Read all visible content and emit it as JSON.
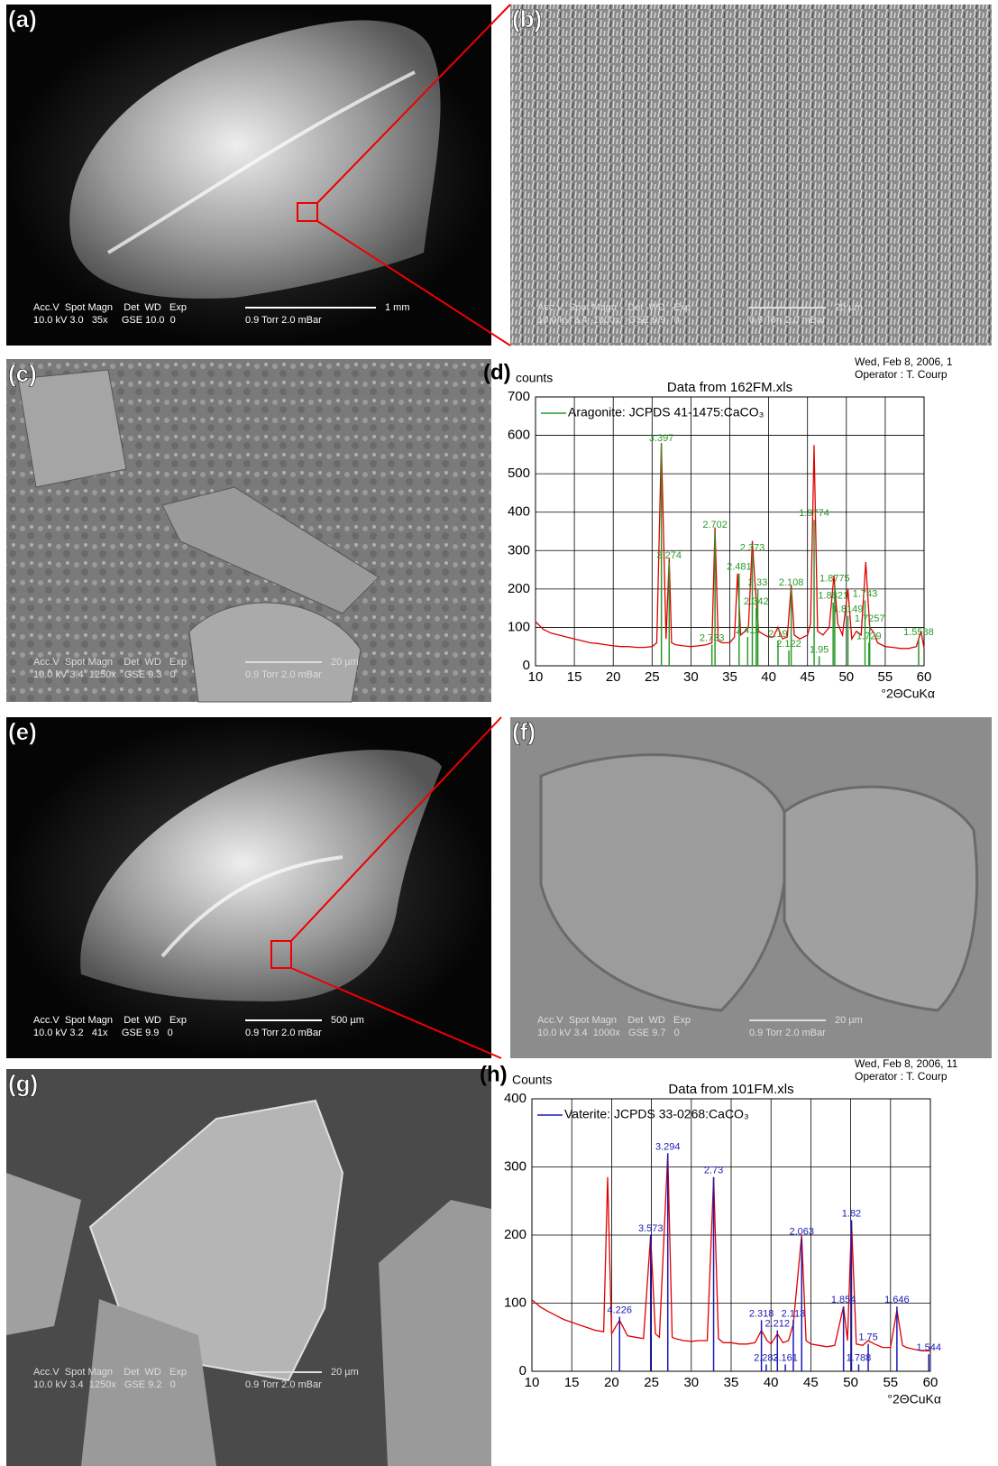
{
  "panels": [
    {
      "label": "(a)",
      "info": [
        "Acc.V  Spot Magn    Det  WD   Exp",
        "10.0 kV 3.0   35x     GSE 10.0  0"
      ],
      "scale": "1 mm",
      "pressure": "0.9 Torr 2.0 mBar"
    },
    {
      "label": "(b)",
      "info": [
        "Acc.V  Spot Magn    Det  WD   Exp",
        "10.0 kV 3.4  1000x   GSE 9.9   0"
      ],
      "scale": "20 µm",
      "pressure": "0.9 Torr 2.0 mBar"
    },
    {
      "label": "(c)",
      "info": [
        "Acc.V  Spot Magn    Det  WD   Exp",
        "10.0 kV 3.4  1250x   GSE 9.3   0"
      ],
      "scale": "20 µm",
      "pressure": "0.9 Torr 2.0 mBar"
    },
    {
      "label": "(e)",
      "info": [
        "Acc.V  Spot Magn    Det  WD   Exp",
        "10.0 kV 3.2   41x     GSE 9.9   0"
      ],
      "scale": "500 µm",
      "pressure": "0.9 Torr 2.0 mBar"
    },
    {
      "label": "(f)",
      "info": [
        "Acc.V  Spot Magn    Det  WD   Exp",
        "10.0 kV 3.4  1000x   GSE 9.7   0"
      ],
      "scale": "20 µm",
      "pressure": "0.9 Torr 2.0 mBar"
    },
    {
      "label": "(g)",
      "info": [
        "Acc.V  Spot Magn    Det  WD   Exp",
        "10.0 kV 3.4  1250x   GSE 9.2   0"
      ],
      "scale": "20 µm",
      "pressure": "0.9 Torr 2.0 mBar"
    }
  ],
  "chart_data": [
    {
      "type": "line",
      "panel": "(d)",
      "title": "Data from 162FM.xls",
      "y_label": "counts",
      "x_label": "°2ΘCuKα",
      "note": "Wed, Feb 8, 2006, 1",
      "operator": "Operator : T. Courp",
      "color": "#e00000",
      "grid": true,
      "legend": "upper left",
      "x": [
        10,
        11,
        12,
        13,
        14,
        15,
        16,
        17,
        18,
        19,
        20,
        21,
        22,
        23,
        24,
        25,
        25.6,
        26.2,
        26.8,
        27.2,
        27.5,
        28,
        29,
        30,
        31,
        32,
        32.7,
        33.1,
        33.5,
        34,
        35,
        35.6,
        36,
        36.4,
        37,
        37.4,
        37.9,
        38.3,
        38.7,
        39.5,
        40,
        40.6,
        41.2,
        41.8,
        42.4,
        42.9,
        43.3,
        44,
        45,
        45.4,
        45.85,
        46.3,
        47,
        47.8,
        48.4,
        48.9,
        49.5,
        50.2,
        50.7,
        51.3,
        51.9,
        52.5,
        53,
        53.6,
        54,
        55,
        56,
        57,
        58,
        59,
        59.6,
        60
      ],
      "values": [
        115,
        95,
        85,
        80,
        75,
        70,
        65,
        60,
        58,
        55,
        52,
        50,
        50,
        48,
        48,
        50,
        60,
        580,
        70,
        280,
        60,
        55,
        52,
        50,
        52,
        55,
        60,
        360,
        65,
        60,
        60,
        75,
        240,
        80,
        90,
        100,
        325,
        200,
        90,
        80,
        75,
        75,
        100,
        70,
        75,
        210,
        80,
        70,
        80,
        110,
        575,
        90,
        80,
        100,
        235,
        110,
        80,
        200,
        70,
        90,
        80,
        270,
        100,
        85,
        60,
        50,
        48,
        45,
        45,
        50,
        90,
        45
      ],
      "reference": {
        "name": "Aragonite: JCPDS 41-1475:CaCO₃",
        "color": "#2a9a2a",
        "x": [
          26.2,
          27.2,
          32.7,
          33.1,
          36.2,
          37.3,
          37.9,
          38.4,
          38.6,
          41.2,
          42.6,
          42.9,
          45.85,
          46.5,
          48.3,
          48.5,
          50.2,
          52.4,
          52.9,
          53.0,
          59.3
        ],
        "values": [
          575,
          270,
          55,
          350,
          240,
          75,
          290,
          150,
          200,
          65,
          40,
          200,
          380,
          25,
          165,
          210,
          130,
          170,
          60,
          105,
          70
        ],
        "labels": [
          "3.397",
          "3.274",
          "2.733",
          "2.702",
          "2.481",
          "2.411",
          "2.373",
          "2.342",
          "2.33",
          "2.19",
          "2.122",
          "2.108",
          "1.9774",
          "1.95",
          "1.8821",
          "1.8775",
          "1.8149",
          "1.743",
          "1.729",
          "1.7257",
          "1.5588"
        ]
      },
      "xlim": [
        10,
        60
      ],
      "xticks": [
        10,
        15,
        20,
        25,
        30,
        35,
        40,
        45,
        50,
        55,
        60
      ],
      "ylim": [
        0,
        700
      ],
      "yticks": [
        0,
        100,
        200,
        300,
        400,
        500,
        600,
        700
      ]
    },
    {
      "type": "line",
      "panel": "(h)",
      "title": "Data from 101FM.xls",
      "y_label": "Counts",
      "x_label": "°2ΘCuKα",
      "note": "Wed, Feb 8, 2006, 11",
      "operator": "Operator : T. Courp",
      "color": "#e00000",
      "grid": true,
      "legend": "upper left",
      "x": [
        10,
        11,
        12,
        13,
        14,
        15,
        16,
        17,
        18,
        19,
        19.5,
        20,
        21,
        22,
        23,
        24,
        24.9,
        25.5,
        26,
        27.05,
        27.6,
        28,
        29,
        30,
        31,
        32,
        32.8,
        33.4,
        34,
        35,
        36,
        37,
        38,
        38.8,
        39.5,
        40,
        40.8,
        41.5,
        42.2,
        42.8,
        43.85,
        44.4,
        45,
        46,
        47,
        48,
        49.1,
        49.6,
        50.1,
        50.7,
        51.5,
        52.2,
        53,
        54,
        55,
        55.8,
        56.5,
        57,
        58,
        59,
        60
      ],
      "values": [
        105,
        95,
        88,
        82,
        76,
        72,
        68,
        64,
        60,
        58,
        285,
        55,
        75,
        52,
        50,
        48,
        200,
        55,
        50,
        320,
        50,
        48,
        45,
        44,
        45,
        45,
        285,
        48,
        42,
        42,
        40,
        40,
        42,
        60,
        45,
        40,
        55,
        42,
        45,
        70,
        200,
        45,
        40,
        38,
        36,
        38,
        95,
        45,
        220,
        40,
        38,
        45,
        40,
        35,
        35,
        90,
        38,
        35,
        32,
        30,
        30
      ],
      "reference": {
        "name": "Vaterite: JCPDS 33-0268:CaCO₃",
        "color": "#1a1ab8",
        "x": [
          21.0,
          24.9,
          27.05,
          32.8,
          38.8,
          39.4,
          40.8,
          41.8,
          42.8,
          43.85,
          49.1,
          50.1,
          51.0,
          52.2,
          55.8,
          59.8
        ],
        "values": [
          80,
          200,
          320,
          285,
          75,
          10,
          60,
          10,
          75,
          195,
          95,
          222,
          10,
          40,
          95,
          25
        ],
        "labels": [
          "4.226",
          "3.573",
          "3.294",
          "2.73",
          "2.318",
          "2.283",
          "2.212",
          "2.161",
          "2.113",
          "2.063",
          "1.854",
          "1.82",
          "1.788",
          "1.75",
          "1.646",
          "1.544"
        ]
      },
      "xlim": [
        10,
        60
      ],
      "xticks": [
        10,
        15,
        20,
        25,
        30,
        35,
        40,
        45,
        50,
        55,
        60
      ],
      "ylim": [
        0,
        400
      ],
      "yticks": [
        0,
        100,
        200,
        300,
        400
      ]
    }
  ]
}
